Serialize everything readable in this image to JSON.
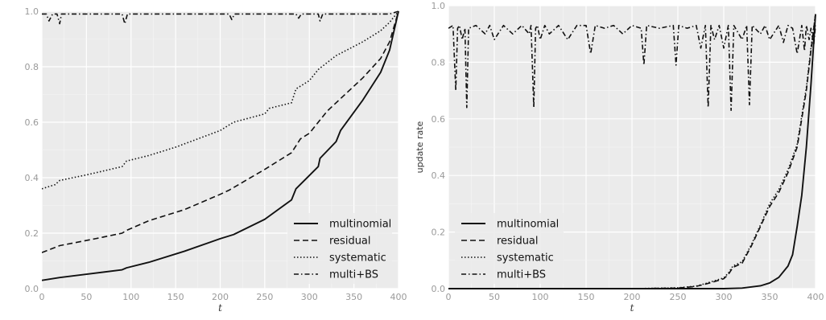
{
  "chart_data": [
    {
      "type": "line",
      "xlabel": "t",
      "ylabel": "",
      "xlim": [
        0,
        400
      ],
      "ylim": [
        0,
        1.0
      ],
      "xticks": [
        "0",
        "50",
        "100",
        "150",
        "200",
        "250",
        "300",
        "350",
        "400"
      ],
      "yticks": [
        "0.0",
        "0.2",
        "0.4",
        "0.6",
        "0.8",
        "1.0"
      ],
      "grid": true,
      "legend_position": "bottom-right",
      "series": [
        {
          "name": "multinomial",
          "dash": "solid",
          "x": [
            0,
            20,
            50,
            90,
            95,
            120,
            160,
            200,
            215,
            250,
            280,
            285,
            310,
            312,
            330,
            335,
            360,
            380,
            390,
            400
          ],
          "y": [
            0.03,
            0.04,
            0.052,
            0.068,
            0.075,
            0.095,
            0.135,
            0.18,
            0.195,
            0.25,
            0.32,
            0.36,
            0.44,
            0.47,
            0.53,
            0.57,
            0.68,
            0.78,
            0.86,
            1.0
          ]
        },
        {
          "name": "residual",
          "dash": "dashed",
          "x": [
            0,
            20,
            60,
            90,
            95,
            120,
            160,
            200,
            210,
            250,
            280,
            290,
            300,
            310,
            320,
            340,
            360,
            380,
            390,
            400
          ],
          "y": [
            0.13,
            0.155,
            0.18,
            0.2,
            0.21,
            0.245,
            0.285,
            0.34,
            0.355,
            0.43,
            0.49,
            0.54,
            0.56,
            0.6,
            0.64,
            0.7,
            0.76,
            0.83,
            0.89,
            1.0
          ]
        },
        {
          "name": "systematic",
          "dash": "dotted",
          "x": [
            0,
            15,
            20,
            50,
            90,
            95,
            120,
            150,
            200,
            215,
            250,
            255,
            280,
            285,
            300,
            310,
            330,
            360,
            380,
            390,
            400
          ],
          "y": [
            0.36,
            0.375,
            0.39,
            0.41,
            0.44,
            0.46,
            0.48,
            0.51,
            0.57,
            0.6,
            0.63,
            0.65,
            0.67,
            0.72,
            0.75,
            0.79,
            0.84,
            0.89,
            0.93,
            0.96,
            1.0
          ]
        },
        {
          "name": "multi+BS",
          "dash": "dashdot",
          "x": [
            0,
            5,
            8,
            12,
            17,
            20,
            22,
            50,
            90,
            93,
            96,
            100,
            150,
            210,
            213,
            216,
            250,
            285,
            288,
            291,
            310,
            312,
            315,
            330,
            360,
            380,
            390,
            400
          ],
          "y": [
            0.99,
            0.99,
            0.965,
            0.99,
            0.99,
            0.955,
            0.99,
            0.99,
            0.99,
            0.955,
            0.99,
            0.99,
            0.99,
            0.99,
            0.97,
            0.99,
            0.99,
            0.99,
            0.975,
            0.99,
            0.99,
            0.965,
            0.99,
            0.99,
            0.99,
            0.99,
            0.99,
            1.0
          ]
        }
      ]
    },
    {
      "type": "line",
      "xlabel": "t",
      "ylabel": "update rate",
      "xlim": [
        0,
        400
      ],
      "ylim": [
        0,
        1.0
      ],
      "xticks": [
        "0",
        "50",
        "100",
        "150",
        "200",
        "250",
        "300",
        "350",
        "400"
      ],
      "yticks": [
        "0.0",
        "0.2",
        "0.4",
        "0.6",
        "0.8",
        "1.0"
      ],
      "grid": true,
      "legend_position": "bottom-left",
      "series": [
        {
          "name": "multinomial",
          "dash": "solid",
          "x": [
            0,
            100,
            200,
            300,
            320,
            340,
            350,
            360,
            370,
            375,
            380,
            385,
            390,
            395,
            400
          ],
          "y": [
            0.0,
            0.0,
            0.0,
            0.0,
            0.002,
            0.01,
            0.02,
            0.04,
            0.08,
            0.12,
            0.22,
            0.33,
            0.5,
            0.72,
            0.97
          ]
        },
        {
          "name": "residual",
          "dash": "dashed",
          "x": [
            0,
            200,
            250,
            270,
            280,
            290,
            300,
            305,
            310,
            320,
            330,
            340,
            350,
            360,
            370,
            380,
            385,
            390,
            395,
            400
          ],
          "y": [
            0.0,
            0.0,
            0.002,
            0.008,
            0.016,
            0.025,
            0.035,
            0.05,
            0.075,
            0.09,
            0.15,
            0.22,
            0.29,
            0.34,
            0.41,
            0.5,
            0.6,
            0.7,
            0.84,
            0.97
          ]
        },
        {
          "name": "systematic",
          "dash": "dotted",
          "x": [
            0,
            200,
            250,
            270,
            280,
            290,
            300,
            305,
            310,
            320,
            330,
            340,
            350,
            360,
            370,
            380,
            385,
            390,
            395,
            400
          ],
          "y": [
            0.0,
            0.0,
            0.003,
            0.009,
            0.018,
            0.028,
            0.038,
            0.055,
            0.08,
            0.095,
            0.155,
            0.225,
            0.3,
            0.35,
            0.42,
            0.51,
            0.61,
            0.71,
            0.85,
            0.97
          ]
        },
        {
          "name": "multi+BS",
          "dash": "dashdot",
          "x": [
            0,
            5,
            8,
            10,
            12,
            15,
            18,
            20,
            22,
            30,
            40,
            45,
            50,
            60,
            70,
            80,
            88,
            90,
            93,
            95,
            97,
            100,
            105,
            110,
            120,
            130,
            140,
            150,
            155,
            160,
            170,
            180,
            190,
            200,
            210,
            213,
            216,
            230,
            245,
            248,
            251,
            260,
            270,
            275,
            280,
            283,
            286,
            290,
            295,
            300,
            305,
            308,
            311,
            320,
            325,
            328,
            331,
            340,
            345,
            350,
            360,
            365,
            370,
            375,
            380,
            385,
            388,
            390,
            393,
            395,
            398,
            400
          ],
          "y": [
            0.92,
            0.93,
            0.7,
            0.92,
            0.93,
            0.88,
            0.92,
            0.64,
            0.92,
            0.93,
            0.9,
            0.93,
            0.88,
            0.93,
            0.9,
            0.93,
            0.9,
            0.93,
            0.64,
            0.92,
            0.93,
            0.88,
            0.93,
            0.9,
            0.93,
            0.88,
            0.93,
            0.93,
            0.83,
            0.93,
            0.92,
            0.93,
            0.9,
            0.93,
            0.92,
            0.79,
            0.93,
            0.92,
            0.93,
            0.79,
            0.93,
            0.92,
            0.93,
            0.85,
            0.93,
            0.64,
            0.93,
            0.88,
            0.93,
            0.85,
            0.93,
            0.63,
            0.93,
            0.88,
            0.93,
            0.65,
            0.93,
            0.9,
            0.93,
            0.88,
            0.93,
            0.87,
            0.93,
            0.92,
            0.83,
            0.93,
            0.84,
            0.93,
            0.88,
            0.92,
            0.86,
            0.93
          ]
        }
      ]
    }
  ]
}
